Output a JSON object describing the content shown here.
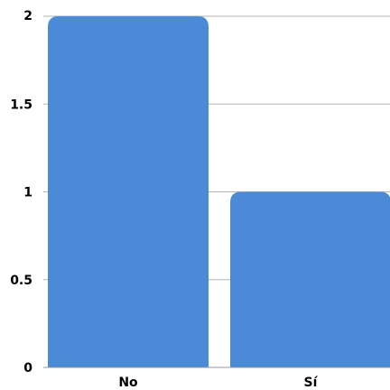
{
  "chart_data": {
    "type": "bar",
    "title": "",
    "xlabel": "",
    "ylabel": "",
    "categories": [
      "No",
      "Sí"
    ],
    "values": [
      2,
      1
    ],
    "ylim": [
      0,
      2
    ],
    "yticks": [
      "0",
      "0.5",
      "1",
      "1.5",
      "2"
    ],
    "ytick_values": [
      0,
      0.5,
      1,
      1.5,
      2
    ],
    "grid": true,
    "legend": "none",
    "bar_color": "#4a8ad6",
    "grid_color": "#b3b3b3",
    "axis_color": "#999999"
  }
}
